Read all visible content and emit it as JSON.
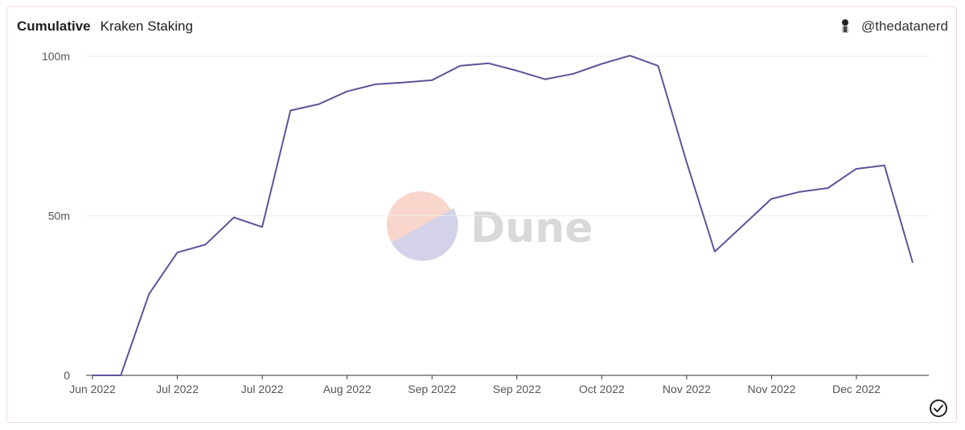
{
  "header": {
    "title": "Cumulative",
    "subtitle": "Kraken Staking",
    "author": "@thedatanerd"
  },
  "watermark": {
    "text": "Dune"
  },
  "icons": {
    "avatar": "avatar-icon",
    "status": "check-circle-icon"
  },
  "colors": {
    "line": "#5b5499",
    "grid": "#ececec",
    "axis": "#555555",
    "watermark_top": "#f8d6cc",
    "watermark_bottom": "#d3d2e8",
    "watermark_text": "#d9d9d9"
  },
  "chart_data": {
    "type": "line",
    "title": "Cumulative",
    "subtitle": "Kraken Staking",
    "xlabel": "",
    "ylabel": "",
    "ylim": [
      0,
      100000000
    ],
    "yticks": [
      {
        "value": 0,
        "label": "0"
      },
      {
        "value": 50000000,
        "label": "50m"
      },
      {
        "value": 100000000,
        "label": "100m"
      }
    ],
    "xticks": [
      "Jun 2022",
      "Jul 2022",
      "Jul 2022",
      "Aug 2022",
      "Sep 2022",
      "Sep 2022",
      "Oct 2022",
      "Nov 2022",
      "Nov 2022",
      "Dec 2022"
    ],
    "grid": true,
    "legend": "none",
    "series": [
      {
        "values": [
          0,
          0,
          25500000,
          38500000,
          41000000,
          49500000,
          46500000,
          83000000,
          85000000,
          89000000,
          91200000,
          91800000,
          92500000,
          97000000,
          97800000,
          95500000,
          92800000,
          94500000,
          97600000,
          100200000,
          97000000,
          67000000,
          38800000,
          47000000,
          55300000,
          57500000,
          58700000,
          64700000,
          65800000,
          35300000
        ]
      }
    ]
  }
}
